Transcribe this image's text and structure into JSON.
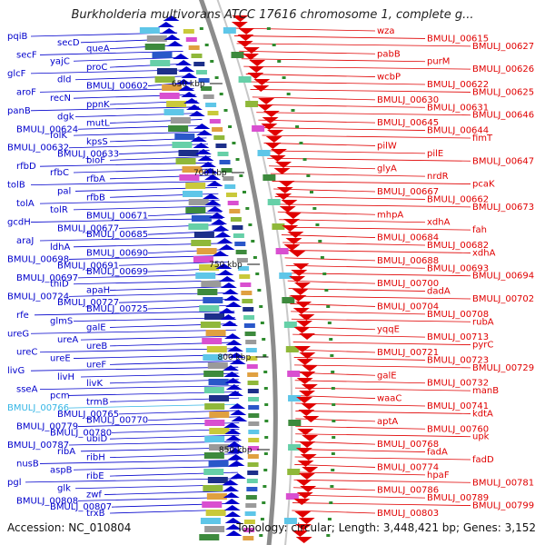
{
  "title": "Burkholderia multivorans ATCC 17616 chromosome 1, complete g...",
  "footer": {
    "accession": "Accession: NC_010804",
    "stats": "Topology: circular; Length: 3,448,421 bp; Genes: 3,152"
  },
  "colors": {
    "forward": "#0000cc",
    "reverse": "#e00000",
    "highlight": "#33b5e5",
    "backbone": "#8c8c8c"
  },
  "kbp_ticks": [
    "650 kbp",
    "700 kbp",
    "750 kbp",
    "800 kbp",
    "850 kbp"
  ],
  "left_labels": [
    "pqiB",
    "secD",
    "queA",
    "secF",
    "yajC",
    "proC",
    "glcF",
    "dld",
    "BMULJ_00602",
    "aroF",
    "recN",
    "ppnK",
    "panB",
    "dgk",
    "mutL",
    "BMULJ_00624",
    "folK",
    "kpsS",
    "BMULJ_00632",
    "BMULJ_00633",
    "bioF",
    "rfbD",
    "rfbC",
    "rfbA",
    "tolB",
    "pal",
    "rfbB",
    "tolA",
    "tolR",
    "BMULJ_00671",
    "gcdH",
    "BMULJ_00677",
    "BMULJ_00685",
    "araJ",
    "ldhA",
    "BMULJ_00690",
    "BMULJ_00698",
    "BMULJ_00691",
    "BMULJ_00699",
    "BMULJ_00697",
    "thiD",
    "apaH",
    "BMULJ_00724",
    "BMULJ_00727",
    "BMULJ_00725",
    "rfe",
    "glmS",
    "galE",
    "ureG",
    "ureA",
    "ureB",
    "ureC",
    "ureE",
    "ureF",
    "livG",
    "livH",
    "livK",
    "sseA",
    "pcm",
    "trmB",
    "BMULJ_00766",
    "BMULJ_00765",
    "BMULJ_00770",
    "BMULJ_00779",
    "BMULJ_00780",
    "ubiD",
    "BMULJ_00787",
    "ribA",
    "ribH",
    "nusB",
    "aspB",
    "ribE",
    "pgl",
    "glk",
    "zwf",
    "BMULJ_00808",
    "BMULJ_00807",
    "trxB"
  ],
  "right_labels": [
    "wza",
    "BMULJ_00615",
    "BMULJ_00627",
    "pabB",
    "purM",
    "BMULJ_00626",
    "wcbP",
    "BMULJ_00622",
    "BMULJ_00625",
    "BMULJ_00630",
    "BMULJ_00631",
    "BMULJ_00646",
    "BMULJ_00645",
    "BMULJ_00644",
    "fimT",
    "pilW",
    "pilE",
    "BMULJ_00647",
    "glyA",
    "nrdR",
    "pcaK",
    "BMULJ_00667",
    "BMULJ_00662",
    "BMULJ_00673",
    "mhpA",
    "xdhA",
    "fah",
    "BMULJ_00684",
    "BMULJ_00682",
    "xdhA",
    "BMULJ_00688",
    "BMULJ_00693",
    "BMULJ_00694",
    "BMULJ_00700",
    "dadA",
    "BMULJ_00702",
    "BMULJ_00704",
    "BMULJ_00708",
    "rubA",
    "yqqE",
    "BMULJ_00713",
    "pyrC",
    "BMULJ_00721",
    "BMULJ_00723",
    "BMULJ_00729",
    "galE",
    "BMULJ_00732",
    "manB",
    "waaC",
    "BMULJ_00741",
    "kdtA",
    "aptA",
    "BMULJ_00760",
    "upk",
    "BMULJ_00768",
    "fadA",
    "fadD",
    "BMULJ_00774",
    "hpaF",
    "BMULJ_00781",
    "BMULJ_00786",
    "BMULJ_00789",
    "BMULJ_00799",
    "BMULJ_00803"
  ]
}
